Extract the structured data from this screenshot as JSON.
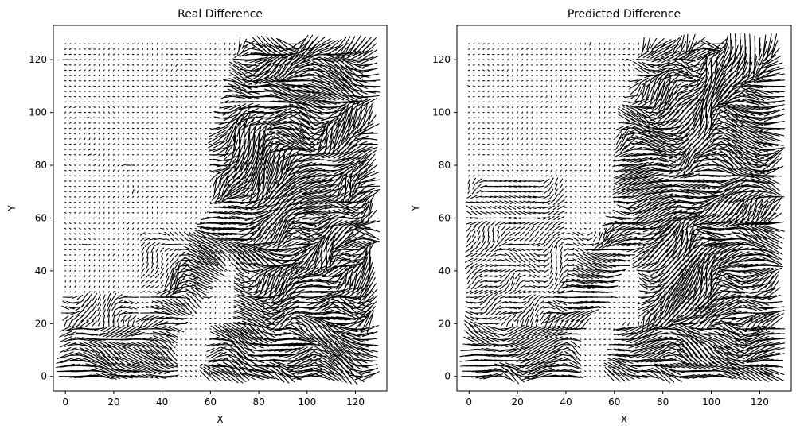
{
  "chart_data": [
    {
      "type": "quiver",
      "title": "Real Difference",
      "xlabel": "X",
      "ylabel": "Y",
      "xlim": [
        -5,
        133
      ],
      "ylim": [
        -5.5,
        133
      ],
      "xticks": [
        0,
        20,
        40,
        60,
        80,
        100,
        120
      ],
      "yticks": [
        0,
        20,
        40,
        60,
        80,
        100,
        120
      ],
      "grid": false,
      "legend": "none",
      "grid_size": 128,
      "arrow_color": "#000000",
      "pattern": "small near-zero arrows across the upper-left and center; large dense arrows along the right side (x 65–128), a diagonal band from (25,0) to (70,60), and the bottom-left region (y < 20)"
    },
    {
      "type": "quiver",
      "title": "Predicted Difference",
      "xlabel": "X",
      "ylabel": "Y",
      "xlim": [
        -5,
        133
      ],
      "ylim": [
        -5.5,
        133
      ],
      "xticks": [
        0,
        20,
        40,
        60,
        80,
        100,
        120
      ],
      "yticks": [
        0,
        20,
        40,
        60,
        80,
        100,
        120
      ],
      "grid": false,
      "legend": "none",
      "grid_size": 128,
      "arrow_color": "#000000",
      "pattern": "similar structure to the real difference, slightly smoother: large arrows on the right side and bottom, denser mid-tone arrows in the left-center region"
    }
  ]
}
